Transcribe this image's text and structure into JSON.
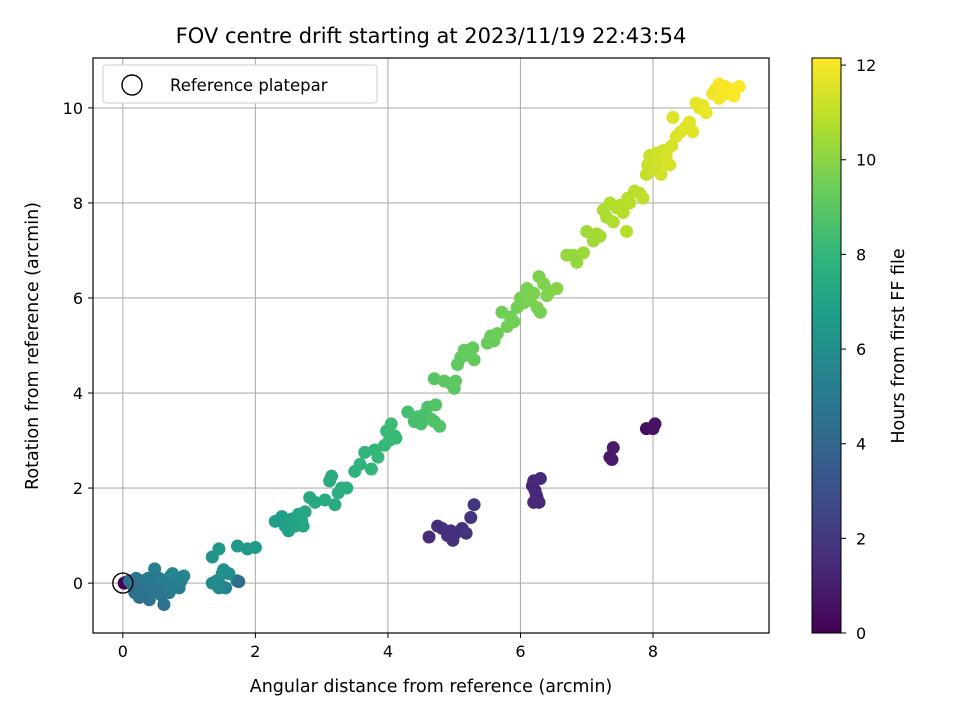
{
  "chart_data": {
    "type": "scatter",
    "title": "FOV centre drift starting at 2023/11/19 22:43:54",
    "xlabel": "Angular distance from reference (arcmin)",
    "ylabel": "Rotation from reference (arcmin)",
    "xlim": [
      -0.45,
      9.75
    ],
    "ylim": [
      -1.05,
      11.05
    ],
    "xticks": [
      0,
      2,
      4,
      6,
      8
    ],
    "yticks": [
      0,
      2,
      4,
      6,
      8,
      10
    ],
    "grid": true,
    "legend": {
      "placement": "top-left",
      "entries": [
        "Reference platepar"
      ]
    },
    "reference_point": {
      "x": 0,
      "y": 0
    },
    "colorbar": {
      "label": "Hours from first FF file",
      "range": [
        0,
        12.15
      ],
      "ticks": [
        0,
        2,
        4,
        6,
        8,
        10,
        12
      ],
      "colormap": "viridis",
      "stops": [
        "#440154",
        "#482878",
        "#3e4989",
        "#31688e",
        "#26828e",
        "#1f9e89",
        "#35b779",
        "#6ece58",
        "#b5de2b",
        "#fde725"
      ]
    },
    "points": [
      {
        "x": 0.02,
        "y": 0.0,
        "c": 0.0
      },
      {
        "x": 0.05,
        "y": 0.02,
        "c": 0.1
      },
      {
        "x": 4.62,
        "y": 0.97,
        "c": 1.5
      },
      {
        "x": 4.75,
        "y": 1.2,
        "c": 1.55
      },
      {
        "x": 4.82,
        "y": 1.15,
        "c": 1.6
      },
      {
        "x": 4.9,
        "y": 1.0,
        "c": 1.6
      },
      {
        "x": 4.95,
        "y": 1.1,
        "c": 1.65
      },
      {
        "x": 4.98,
        "y": 0.9,
        "c": 1.7
      },
      {
        "x": 5.02,
        "y": 1.05,
        "c": 1.7
      },
      {
        "x": 5.12,
        "y": 1.15,
        "c": 1.75
      },
      {
        "x": 5.18,
        "y": 1.05,
        "c": 1.8
      },
      {
        "x": 5.25,
        "y": 1.38,
        "c": 1.85
      },
      {
        "x": 5.3,
        "y": 1.65,
        "c": 1.9
      },
      {
        "x": 6.18,
        "y": 2.05,
        "c": 1.2
      },
      {
        "x": 6.22,
        "y": 1.95,
        "c": 1.25
      },
      {
        "x": 6.2,
        "y": 2.15,
        "c": 1.3
      },
      {
        "x": 6.25,
        "y": 1.8,
        "c": 1.3
      },
      {
        "x": 6.2,
        "y": 1.7,
        "c": 1.35
      },
      {
        "x": 6.28,
        "y": 1.7,
        "c": 1.35
      },
      {
        "x": 6.3,
        "y": 2.2,
        "c": 1.4
      },
      {
        "x": 6.24,
        "y": 1.85,
        "c": 1.4
      },
      {
        "x": 7.35,
        "y": 2.65,
        "c": 0.8
      },
      {
        "x": 7.38,
        "y": 2.6,
        "c": 0.85
      },
      {
        "x": 7.4,
        "y": 2.85,
        "c": 0.9
      },
      {
        "x": 7.9,
        "y": 3.25,
        "c": 0.5
      },
      {
        "x": 8.0,
        "y": 3.25,
        "c": 0.55
      },
      {
        "x": 8.03,
        "y": 3.35,
        "c": 0.6
      },
      {
        "x": 0.1,
        "y": 0.05,
        "c": 4.5
      },
      {
        "x": 0.15,
        "y": -0.05,
        "c": 4.6
      },
      {
        "x": 0.2,
        "y": 0.1,
        "c": 4.7
      },
      {
        "x": 0.18,
        "y": -0.2,
        "c": 4.5
      },
      {
        "x": 0.25,
        "y": -0.3,
        "c": 4.4
      },
      {
        "x": 0.3,
        "y": 0.05,
        "c": 4.8
      },
      {
        "x": 0.35,
        "y": -0.1,
        "c": 4.9
      },
      {
        "x": 0.38,
        "y": 0.1,
        "c": 5.0
      },
      {
        "x": 0.4,
        "y": -0.35,
        "c": 4.6
      },
      {
        "x": 0.45,
        "y": -0.2,
        "c": 4.7
      },
      {
        "x": 0.48,
        "y": 0.3,
        "c": 5.2
      },
      {
        "x": 0.5,
        "y": 0.0,
        "c": 5.0
      },
      {
        "x": 0.55,
        "y": 0.1,
        "c": 5.1
      },
      {
        "x": 0.58,
        "y": -0.25,
        "c": 4.8
      },
      {
        "x": 0.6,
        "y": -0.1,
        "c": 4.9
      },
      {
        "x": 0.62,
        "y": -0.45,
        "c": 4.5
      },
      {
        "x": 0.65,
        "y": 0.05,
        "c": 5.3
      },
      {
        "x": 0.7,
        "y": -0.2,
        "c": 5.0
      },
      {
        "x": 0.72,
        "y": 0.15,
        "c": 5.5
      },
      {
        "x": 0.75,
        "y": 0.2,
        "c": 5.6
      },
      {
        "x": 0.78,
        "y": -0.05,
        "c": 5.2
      },
      {
        "x": 0.82,
        "y": 0.1,
        "c": 5.4
      },
      {
        "x": 0.85,
        "y": -0.1,
        "c": 5.1
      },
      {
        "x": 0.88,
        "y": 0.05,
        "c": 5.3
      },
      {
        "x": 0.92,
        "y": 0.15,
        "c": 5.5
      },
      {
        "x": 0.3,
        "y": -0.15,
        "c": 4.6
      },
      {
        "x": 0.42,
        "y": 0.05,
        "c": 4.9
      },
      {
        "x": 0.52,
        "y": -0.15,
        "c": 4.8
      },
      {
        "x": 0.68,
        "y": 0.0,
        "c": 5.2
      },
      {
        "x": 0.2,
        "y": -0.1,
        "c": 4.5
      },
      {
        "x": 1.35,
        "y": 0.0,
        "c": 5.8
      },
      {
        "x": 1.42,
        "y": 0.05,
        "c": 5.9
      },
      {
        "x": 1.48,
        "y": -0.05,
        "c": 5.7
      },
      {
        "x": 1.5,
        "y": 0.2,
        "c": 6.0
      },
      {
        "x": 1.52,
        "y": 0.28,
        "c": 6.1
      },
      {
        "x": 1.55,
        "y": -0.1,
        "c": 5.5
      },
      {
        "x": 1.6,
        "y": 0.2,
        "c": 6.0
      },
      {
        "x": 1.72,
        "y": 0.05,
        "c": 5.9
      },
      {
        "x": 1.75,
        "y": 0.03,
        "c": 4.4
      },
      {
        "x": 1.45,
        "y": -0.1,
        "c": 5.7
      },
      {
        "x": 1.35,
        "y": 0.55,
        "c": 6.3
      },
      {
        "x": 1.45,
        "y": 0.72,
        "c": 6.4
      },
      {
        "x": 1.73,
        "y": 0.78,
        "c": 6.5
      },
      {
        "x": 1.88,
        "y": 0.72,
        "c": 6.5
      },
      {
        "x": 2.0,
        "y": 0.75,
        "c": 6.6
      },
      {
        "x": 2.3,
        "y": 1.3,
        "c": 6.8
      },
      {
        "x": 2.4,
        "y": 1.4,
        "c": 6.8
      },
      {
        "x": 2.45,
        "y": 1.2,
        "c": 6.9
      },
      {
        "x": 2.5,
        "y": 1.1,
        "c": 6.9
      },
      {
        "x": 2.55,
        "y": 1.35,
        "c": 7.0
      },
      {
        "x": 2.6,
        "y": 1.2,
        "c": 7.0
      },
      {
        "x": 2.65,
        "y": 1.45,
        "c": 7.1
      },
      {
        "x": 2.7,
        "y": 1.3,
        "c": 7.1
      },
      {
        "x": 2.75,
        "y": 1.5,
        "c": 7.2
      },
      {
        "x": 2.72,
        "y": 1.2,
        "c": 7.2
      },
      {
        "x": 2.82,
        "y": 1.8,
        "c": 7.3
      },
      {
        "x": 2.9,
        "y": 1.7,
        "c": 7.3
      },
      {
        "x": 3.05,
        "y": 1.75,
        "c": 7.4
      },
      {
        "x": 3.12,
        "y": 2.15,
        "c": 7.5
      },
      {
        "x": 3.15,
        "y": 2.25,
        "c": 7.5
      },
      {
        "x": 3.2,
        "y": 1.65,
        "c": 7.4
      },
      {
        "x": 3.25,
        "y": 1.9,
        "c": 7.6
      },
      {
        "x": 3.3,
        "y": 2.0,
        "c": 7.6
      },
      {
        "x": 3.38,
        "y": 2.0,
        "c": 7.7
      },
      {
        "x": 3.5,
        "y": 2.35,
        "c": 7.8
      },
      {
        "x": 3.58,
        "y": 2.5,
        "c": 7.9
      },
      {
        "x": 3.65,
        "y": 2.75,
        "c": 7.9
      },
      {
        "x": 3.75,
        "y": 2.4,
        "c": 8.0
      },
      {
        "x": 3.8,
        "y": 2.8,
        "c": 8.0
      },
      {
        "x": 3.85,
        "y": 2.65,
        "c": 8.1
      },
      {
        "x": 3.95,
        "y": 2.9,
        "c": 8.1
      },
      {
        "x": 3.98,
        "y": 3.2,
        "c": 8.2
      },
      {
        "x": 4.02,
        "y": 3.0,
        "c": 8.2
      },
      {
        "x": 4.05,
        "y": 3.35,
        "c": 8.3
      },
      {
        "x": 4.1,
        "y": 3.1,
        "c": 8.3
      },
      {
        "x": 4.12,
        "y": 3.05,
        "c": 8.2
      },
      {
        "x": 4.3,
        "y": 3.6,
        "c": 8.5
      },
      {
        "x": 4.4,
        "y": 3.4,
        "c": 8.5
      },
      {
        "x": 4.45,
        "y": 3.5,
        "c": 8.6
      },
      {
        "x": 4.5,
        "y": 3.35,
        "c": 8.6
      },
      {
        "x": 4.55,
        "y": 3.55,
        "c": 8.6
      },
      {
        "x": 4.6,
        "y": 3.7,
        "c": 8.7
      },
      {
        "x": 4.65,
        "y": 3.45,
        "c": 8.7
      },
      {
        "x": 4.7,
        "y": 3.4,
        "c": 8.7
      },
      {
        "x": 4.72,
        "y": 3.75,
        "c": 8.8
      },
      {
        "x": 4.78,
        "y": 3.3,
        "c": 8.8
      },
      {
        "x": 4.7,
        "y": 4.3,
        "c": 8.9
      },
      {
        "x": 4.85,
        "y": 4.25,
        "c": 9.0
      },
      {
        "x": 4.95,
        "y": 4.2,
        "c": 9.0
      },
      {
        "x": 5.0,
        "y": 4.1,
        "c": 9.0
      },
      {
        "x": 5.02,
        "y": 4.25,
        "c": 9.1
      },
      {
        "x": 5.05,
        "y": 4.6,
        "c": 9.1
      },
      {
        "x": 5.1,
        "y": 4.75,
        "c": 9.1
      },
      {
        "x": 5.15,
        "y": 4.9,
        "c": 9.2
      },
      {
        "x": 5.2,
        "y": 4.8,
        "c": 9.2
      },
      {
        "x": 5.28,
        "y": 4.95,
        "c": 9.2
      },
      {
        "x": 5.3,
        "y": 4.7,
        "c": 9.2
      },
      {
        "x": 5.5,
        "y": 5.05,
        "c": 9.3
      },
      {
        "x": 5.55,
        "y": 5.2,
        "c": 9.3
      },
      {
        "x": 5.6,
        "y": 5.1,
        "c": 9.3
      },
      {
        "x": 5.65,
        "y": 5.25,
        "c": 9.4
      },
      {
        "x": 5.72,
        "y": 5.7,
        "c": 9.4
      },
      {
        "x": 5.8,
        "y": 5.4,
        "c": 9.5
      },
      {
        "x": 5.85,
        "y": 5.6,
        "c": 9.5
      },
      {
        "x": 5.9,
        "y": 5.5,
        "c": 9.5
      },
      {
        "x": 5.95,
        "y": 5.8,
        "c": 9.5
      },
      {
        "x": 6.0,
        "y": 6.0,
        "c": 9.6
      },
      {
        "x": 6.05,
        "y": 5.9,
        "c": 9.6
      },
      {
        "x": 6.1,
        "y": 6.2,
        "c": 9.6
      },
      {
        "x": 6.15,
        "y": 5.95,
        "c": 9.7
      },
      {
        "x": 6.2,
        "y": 6.1,
        "c": 9.7
      },
      {
        "x": 6.25,
        "y": 5.8,
        "c": 9.7
      },
      {
        "x": 6.28,
        "y": 6.45,
        "c": 9.7
      },
      {
        "x": 6.3,
        "y": 5.7,
        "c": 9.6
      },
      {
        "x": 6.35,
        "y": 6.3,
        "c": 9.8
      },
      {
        "x": 6.4,
        "y": 6.05,
        "c": 9.8
      },
      {
        "x": 6.45,
        "y": 6.15,
        "c": 9.8
      },
      {
        "x": 6.55,
        "y": 6.2,
        "c": 9.9
      },
      {
        "x": 6.7,
        "y": 6.9,
        "c": 10.2
      },
      {
        "x": 6.8,
        "y": 6.9,
        "c": 10.2
      },
      {
        "x": 6.85,
        "y": 6.75,
        "c": 10.2
      },
      {
        "x": 6.95,
        "y": 6.95,
        "c": 10.3
      },
      {
        "x": 7.0,
        "y": 7.4,
        "c": 10.4
      },
      {
        "x": 7.1,
        "y": 7.2,
        "c": 10.4
      },
      {
        "x": 7.15,
        "y": 7.35,
        "c": 10.5
      },
      {
        "x": 7.2,
        "y": 7.3,
        "c": 10.5
      },
      {
        "x": 7.25,
        "y": 7.85,
        "c": 10.6
      },
      {
        "x": 7.3,
        "y": 7.7,
        "c": 10.6
      },
      {
        "x": 7.35,
        "y": 8.0,
        "c": 10.7
      },
      {
        "x": 7.4,
        "y": 7.6,
        "c": 10.7
      },
      {
        "x": 7.45,
        "y": 7.9,
        "c": 10.7
      },
      {
        "x": 7.5,
        "y": 7.95,
        "c": 10.8
      },
      {
        "x": 7.55,
        "y": 7.8,
        "c": 10.8
      },
      {
        "x": 7.6,
        "y": 7.4,
        "c": 10.8
      },
      {
        "x": 7.62,
        "y": 8.1,
        "c": 10.8
      },
      {
        "x": 7.65,
        "y": 8.0,
        "c": 10.9
      },
      {
        "x": 7.72,
        "y": 8.25,
        "c": 10.9
      },
      {
        "x": 7.8,
        "y": 8.2,
        "c": 10.9
      },
      {
        "x": 7.85,
        "y": 8.1,
        "c": 11.0
      },
      {
        "x": 7.9,
        "y": 8.6,
        "c": 11.1
      },
      {
        "x": 7.92,
        "y": 8.8,
        "c": 11.1
      },
      {
        "x": 7.95,
        "y": 9.0,
        "c": 11.2
      },
      {
        "x": 8.0,
        "y": 8.9,
        "c": 11.2
      },
      {
        "x": 8.02,
        "y": 8.7,
        "c": 11.2
      },
      {
        "x": 8.05,
        "y": 9.05,
        "c": 11.3
      },
      {
        "x": 8.1,
        "y": 8.85,
        "c": 11.3
      },
      {
        "x": 8.12,
        "y": 8.6,
        "c": 11.3
      },
      {
        "x": 8.15,
        "y": 9.1,
        "c": 11.3
      },
      {
        "x": 8.2,
        "y": 9.0,
        "c": 11.4
      },
      {
        "x": 8.25,
        "y": 8.8,
        "c": 11.4
      },
      {
        "x": 8.28,
        "y": 9.2,
        "c": 11.4
      },
      {
        "x": 8.3,
        "y": 9.8,
        "c": 11.5
      },
      {
        "x": 8.35,
        "y": 9.4,
        "c": 11.5
      },
      {
        "x": 8.42,
        "y": 9.5,
        "c": 11.5
      },
      {
        "x": 8.5,
        "y": 9.6,
        "c": 11.6
      },
      {
        "x": 8.55,
        "y": 9.7,
        "c": 11.6
      },
      {
        "x": 8.6,
        "y": 9.5,
        "c": 11.6
      },
      {
        "x": 8.65,
        "y": 10.1,
        "c": 11.7
      },
      {
        "x": 8.7,
        "y": 10.0,
        "c": 11.7
      },
      {
        "x": 8.75,
        "y": 10.05,
        "c": 11.7
      },
      {
        "x": 8.8,
        "y": 9.9,
        "c": 11.8
      },
      {
        "x": 8.9,
        "y": 10.3,
        "c": 11.9
      },
      {
        "x": 8.95,
        "y": 10.4,
        "c": 11.9
      },
      {
        "x": 9.0,
        "y": 10.2,
        "c": 11.9
      },
      {
        "x": 9.05,
        "y": 10.35,
        "c": 12.0
      },
      {
        "x": 9.08,
        "y": 10.45,
        "c": 12.0
      },
      {
        "x": 9.1,
        "y": 10.3,
        "c": 12.0
      },
      {
        "x": 9.15,
        "y": 10.4,
        "c": 12.0
      },
      {
        "x": 9.2,
        "y": 10.35,
        "c": 12.1
      },
      {
        "x": 9.22,
        "y": 10.25,
        "c": 12.1
      },
      {
        "x": 9.3,
        "y": 10.45,
        "c": 12.1
      },
      {
        "x": 9.0,
        "y": 10.5,
        "c": 12.0
      }
    ]
  }
}
